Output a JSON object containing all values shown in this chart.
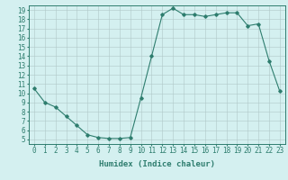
{
  "x": [
    0,
    1,
    2,
    3,
    4,
    5,
    6,
    7,
    8,
    9,
    10,
    11,
    12,
    13,
    14,
    15,
    16,
    17,
    18,
    19,
    20,
    21,
    22,
    23
  ],
  "y": [
    10.5,
    9.0,
    8.5,
    7.5,
    6.5,
    5.5,
    5.2,
    5.1,
    5.1,
    5.2,
    9.5,
    14.0,
    18.5,
    19.2,
    18.5,
    18.5,
    18.3,
    18.5,
    18.7,
    18.7,
    17.3,
    17.5,
    13.5,
    10.2
  ],
  "xlabel": "Humidex (Indice chaleur)",
  "xlim": [
    -0.5,
    23.5
  ],
  "ylim": [
    4.5,
    19.5
  ],
  "xticks": [
    0,
    1,
    2,
    3,
    4,
    5,
    6,
    7,
    8,
    9,
    10,
    11,
    12,
    13,
    14,
    15,
    16,
    17,
    18,
    19,
    20,
    21,
    22,
    23
  ],
  "yticks": [
    5,
    6,
    7,
    8,
    9,
    10,
    11,
    12,
    13,
    14,
    15,
    16,
    17,
    18,
    19
  ],
  "line_color": "#2e7d6e",
  "marker": "D",
  "markersize": 1.8,
  "bg_color": "#d4f0f0",
  "grid_color": "#b0c8c8",
  "axis_fontsize": 6.5,
  "tick_fontsize": 5.5
}
